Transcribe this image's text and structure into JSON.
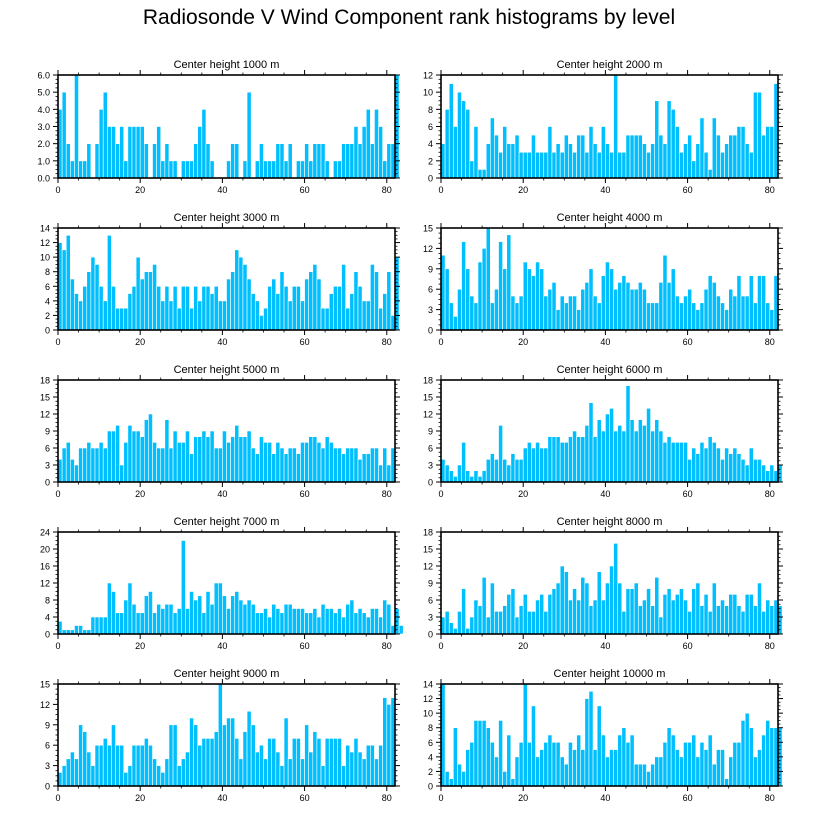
{
  "title": "Radiosonde V Wind Component rank histograms by level",
  "chart_data": [
    {
      "type": "bar",
      "title": "Center height 1000 m",
      "xlim": [
        0,
        82
      ],
      "ylim": [
        0,
        6
      ],
      "yticks": [
        0,
        1,
        2,
        3,
        4,
        5,
        6
      ],
      "ytick_labels": [
        "0.0",
        "1.0",
        "2.0",
        "3.0",
        "4.0",
        "5.0",
        "6.0"
      ],
      "xticks": [
        0,
        20,
        40,
        60,
        80
      ],
      "x_start": 0,
      "values": [
        4,
        5,
        2,
        1,
        6,
        1,
        1,
        2,
        0,
        2,
        4,
        5,
        3,
        3,
        2,
        3,
        1,
        3,
        3,
        3,
        3,
        2,
        0,
        2,
        3,
        1,
        2,
        1,
        1,
        0,
        1,
        1,
        1,
        2,
        3,
        4,
        2,
        1,
        0,
        0,
        0,
        1,
        2,
        2,
        0,
        1,
        5,
        0,
        1,
        2,
        1,
        1,
        1,
        2,
        2,
        1,
        2,
        0,
        1,
        1,
        2,
        1,
        2,
        2,
        2,
        1,
        0,
        1,
        1,
        2,
        2,
        2,
        3,
        2,
        3,
        4,
        2,
        4,
        3,
        1,
        2,
        2,
        6
      ]
    },
    {
      "type": "bar",
      "title": "Center height 2000 m",
      "xlim": [
        0,
        82
      ],
      "ylim": [
        0,
        12
      ],
      "yticks": [
        0,
        2,
        4,
        6,
        8,
        10,
        12
      ],
      "ytick_labels": [
        "0",
        "2",
        "4",
        "6",
        "8",
        "10",
        "12"
      ],
      "xticks": [
        0,
        20,
        40,
        60,
        80
      ],
      "x_start": 0,
      "values": [
        4,
        8,
        11,
        6,
        10,
        9,
        8,
        2,
        6,
        1,
        1,
        4,
        7,
        5,
        3,
        6,
        4,
        4,
        5,
        3,
        3,
        3,
        5,
        3,
        3,
        3,
        6,
        3,
        4,
        3,
        5,
        4,
        3,
        5,
        5,
        3,
        6,
        4,
        3,
        6,
        4,
        3,
        12,
        3,
        3,
        5,
        5,
        5,
        5,
        4,
        3,
        4,
        9,
        5,
        4,
        9,
        8,
        6,
        3,
        4,
        5,
        2,
        4,
        7,
        3,
        1,
        7,
        5,
        3,
        4,
        5,
        5,
        6,
        6,
        4,
        3,
        10,
        10,
        5,
        6,
        6,
        11
      ]
    },
    {
      "type": "bar",
      "title": "Center height 3000 m",
      "xlim": [
        0,
        82
      ],
      "ylim": [
        0,
        14
      ],
      "yticks": [
        0,
        2,
        4,
        6,
        8,
        10,
        12,
        14
      ],
      "ytick_labels": [
        "0",
        "2",
        "4",
        "6",
        "8",
        "10",
        "12",
        "14"
      ],
      "xticks": [
        0,
        20,
        40,
        60,
        80
      ],
      "x_start": 0,
      "values": [
        12,
        11,
        13,
        7,
        5,
        4,
        6,
        8,
        10,
        9,
        6,
        4,
        13,
        6,
        3,
        3,
        3,
        5,
        6,
        10,
        7,
        8,
        8,
        9,
        6,
        4,
        6,
        4,
        6,
        3,
        6,
        6,
        3,
        6,
        4,
        6,
        6,
        5,
        6,
        4,
        4,
        7,
        8,
        11,
        10,
        9,
        7,
        5,
        4,
        2,
        3,
        6,
        7,
        5,
        8,
        6,
        4,
        6,
        6,
        4,
        7,
        8,
        9,
        7,
        3,
        3,
        5,
        6,
        6,
        9,
        3,
        5,
        8,
        6,
        4,
        4,
        9,
        8,
        3,
        5,
        8,
        2,
        10
      ]
    },
    {
      "type": "bar",
      "title": "Center height 4000 m",
      "xlim": [
        0,
        82
      ],
      "ylim": [
        0,
        15
      ],
      "yticks": [
        0,
        3,
        6,
        9,
        12,
        15
      ],
      "ytick_labels": [
        "0",
        "3",
        "6",
        "9",
        "12",
        "15"
      ],
      "xticks": [
        0,
        20,
        40,
        60,
        80
      ],
      "x_start": 0,
      "values": [
        11,
        9,
        4,
        2,
        6,
        13,
        9,
        5,
        4,
        10,
        12,
        15,
        4,
        6,
        13,
        9,
        14,
        5,
        4,
        5,
        10,
        9,
        8,
        10,
        9,
        5,
        6,
        7,
        3,
        5,
        4,
        5,
        5,
        3,
        6,
        7,
        9,
        5,
        4,
        8,
        10,
        9,
        6,
        7,
        8,
        7,
        6,
        6,
        7,
        6,
        4,
        4,
        4,
        7,
        11,
        7,
        9,
        5,
        4,
        5,
        6,
        4,
        3,
        4,
        6,
        8,
        7,
        5,
        4,
        3,
        6,
        5,
        8,
        5,
        5,
        8,
        4,
        8,
        8,
        4,
        3,
        8
      ]
    },
    {
      "type": "bar",
      "title": "Center height 5000 m",
      "xlim": [
        0,
        82
      ],
      "ylim": [
        0,
        18
      ],
      "yticks": [
        0,
        3,
        6,
        9,
        12,
        15,
        18
      ],
      "ytick_labels": [
        "0",
        "3",
        "6",
        "9",
        "12",
        "15",
        "18"
      ],
      "xticks": [
        0,
        20,
        40,
        60,
        80
      ],
      "x_start": 0,
      "values": [
        4,
        6,
        7,
        4,
        3,
        6,
        6,
        7,
        6,
        6,
        7,
        6,
        9,
        9,
        10,
        3,
        7,
        10,
        9,
        9,
        8,
        11,
        12,
        7,
        6,
        6,
        11,
        6,
        9,
        7,
        7,
        9,
        5,
        8,
        8,
        9,
        8,
        9,
        6,
        6,
        9,
        7,
        8,
        10,
        8,
        8,
        9,
        6,
        5,
        8,
        7,
        7,
        5,
        7,
        6,
        5,
        6,
        6,
        5,
        7,
        7,
        8,
        8,
        7,
        6,
        8,
        7,
        6,
        6,
        5,
        6,
        6,
        6,
        4,
        5,
        5,
        6,
        6,
        3,
        6,
        3,
        6
      ]
    },
    {
      "type": "bar",
      "title": "Center height 6000 m",
      "xlim": [
        0,
        82
      ],
      "ylim": [
        0,
        18
      ],
      "yticks": [
        0,
        3,
        6,
        9,
        12,
        15,
        18
      ],
      "ytick_labels": [
        "0",
        "3",
        "6",
        "9",
        "12",
        "15",
        "18"
      ],
      "xticks": [
        0,
        20,
        40,
        60,
        80
      ],
      "x_start": 0,
      "values": [
        4,
        3,
        2,
        1,
        3,
        7,
        2,
        1,
        2,
        1,
        2,
        4,
        5,
        4,
        10,
        4,
        3,
        5,
        4,
        4,
        6,
        7,
        6,
        7,
        6,
        6,
        8,
        8,
        8,
        7,
        7,
        8,
        9,
        8,
        8,
        10,
        14,
        8,
        11,
        9,
        12,
        13,
        9,
        10,
        9,
        17,
        11,
        9,
        11,
        10,
        13,
        9,
        11,
        9,
        7,
        8,
        7,
        7,
        7,
        7,
        4,
        6,
        5,
        7,
        6,
        8,
        7,
        6,
        4,
        6,
        5,
        6,
        5,
        4,
        3,
        6,
        4,
        4,
        3,
        2,
        3,
        2,
        3
      ]
    },
    {
      "type": "bar",
      "title": "Center height 7000 m",
      "xlim": [
        0,
        82
      ],
      "ylim": [
        0,
        24
      ],
      "yticks": [
        0,
        4,
        8,
        12,
        16,
        20,
        24
      ],
      "ytick_labels": [
        "0",
        "4",
        "8",
        "12",
        "16",
        "20",
        "24"
      ],
      "xticks": [
        0,
        20,
        40,
        60,
        80
      ],
      "x_start": 0,
      "values": [
        3,
        1,
        1,
        1,
        2,
        2,
        1,
        1,
        4,
        4,
        4,
        4,
        12,
        10,
        5,
        5,
        8,
        12,
        7,
        5,
        5,
        9,
        10,
        5,
        7,
        6,
        7,
        7,
        5,
        6,
        22,
        6,
        10,
        8,
        9,
        5,
        10,
        7,
        12,
        12,
        9,
        6,
        9,
        10,
        8,
        7,
        8,
        7,
        5,
        5,
        6,
        4,
        7,
        6,
        5,
        7,
        7,
        6,
        6,
        6,
        5,
        5,
        6,
        4,
        7,
        6,
        6,
        5,
        6,
        4,
        7,
        8,
        5,
        6,
        5,
        4,
        6,
        6,
        4,
        8,
        7,
        2,
        6,
        2
      ]
    },
    {
      "type": "bar",
      "title": "Center height 8000 m",
      "xlim": [
        0,
        82
      ],
      "ylim": [
        0,
        18
      ],
      "yticks": [
        0,
        3,
        6,
        9,
        12,
        15,
        18
      ],
      "ytick_labels": [
        "0",
        "3",
        "6",
        "9",
        "12",
        "15",
        "18"
      ],
      "xticks": [
        0,
        20,
        40,
        60,
        80
      ],
      "x_start": 0,
      "values": [
        3,
        4,
        2,
        1,
        4,
        8,
        1,
        3,
        6,
        5,
        10,
        3,
        9,
        4,
        4,
        5,
        7,
        8,
        3,
        5,
        7,
        4,
        4,
        6,
        7,
        4,
        7,
        8,
        9,
        12,
        11,
        6,
        8,
        6,
        10,
        9,
        5,
        6,
        11,
        6,
        9,
        12,
        16,
        9,
        4,
        8,
        8,
        9,
        5,
        6,
        8,
        5,
        10,
        3,
        7,
        8,
        6,
        7,
        8,
        6,
        4,
        8,
        9,
        5,
        7,
        4,
        9,
        5,
        6,
        5,
        7,
        7,
        5,
        4,
        7,
        7,
        5,
        9,
        4,
        6,
        5,
        6,
        5
      ]
    },
    {
      "type": "bar",
      "title": "Center height 9000 m",
      "xlim": [
        0,
        82
      ],
      "ylim": [
        0,
        15
      ],
      "yticks": [
        0,
        3,
        6,
        9,
        12,
        15
      ],
      "ytick_labels": [
        "0",
        "3",
        "6",
        "9",
        "12",
        "15"
      ],
      "xticks": [
        0,
        20,
        40,
        60,
        80
      ],
      "x_start": 0,
      "values": [
        2,
        3,
        4,
        5,
        4,
        9,
        8,
        5,
        3,
        6,
        6,
        7,
        6,
        9,
        6,
        6,
        2,
        3,
        6,
        6,
        6,
        7,
        6,
        4,
        3,
        2,
        4,
        9,
        9,
        3,
        4,
        5,
        10,
        9,
        6,
        7,
        7,
        7,
        8,
        15,
        9,
        10,
        10,
        7,
        4,
        8,
        11,
        9,
        5,
        6,
        4,
        7,
        7,
        5,
        3,
        10,
        4,
        7,
        7,
        4,
        9,
        5,
        8,
        7,
        3,
        7,
        7,
        7,
        7,
        3,
        6,
        5,
        7,
        5,
        4,
        6,
        6,
        4,
        6,
        13,
        12,
        13
      ]
    },
    {
      "type": "bar",
      "title": "Center height 10000 m",
      "xlim": [
        0,
        82
      ],
      "ylim": [
        0,
        14
      ],
      "yticks": [
        0,
        2,
        4,
        6,
        8,
        10,
        12,
        14
      ],
      "ytick_labels": [
        "0",
        "2",
        "4",
        "6",
        "8",
        "10",
        "12",
        "14"
      ],
      "xticks": [
        0,
        20,
        40,
        60,
        80
      ],
      "x_start": 0,
      "values": [
        14,
        2,
        1,
        8,
        3,
        2,
        5,
        6,
        9,
        9,
        9,
        8,
        6,
        4,
        9,
        2,
        7,
        1,
        4,
        6,
        14,
        6,
        11,
        4,
        5,
        6,
        7,
        6,
        6,
        4,
        3,
        6,
        5,
        7,
        5,
        12,
        13,
        5,
        11,
        7,
        4,
        5,
        5,
        7,
        8,
        6,
        7,
        3,
        3,
        3,
        2,
        3,
        4,
        4,
        6,
        8,
        7,
        5,
        4,
        6,
        6,
        7,
        4,
        6,
        5,
        7,
        3,
        5,
        5,
        1,
        4,
        6,
        6,
        9,
        10,
        8,
        4,
        5,
        7,
        9,
        8,
        8,
        8
      ]
    }
  ]
}
